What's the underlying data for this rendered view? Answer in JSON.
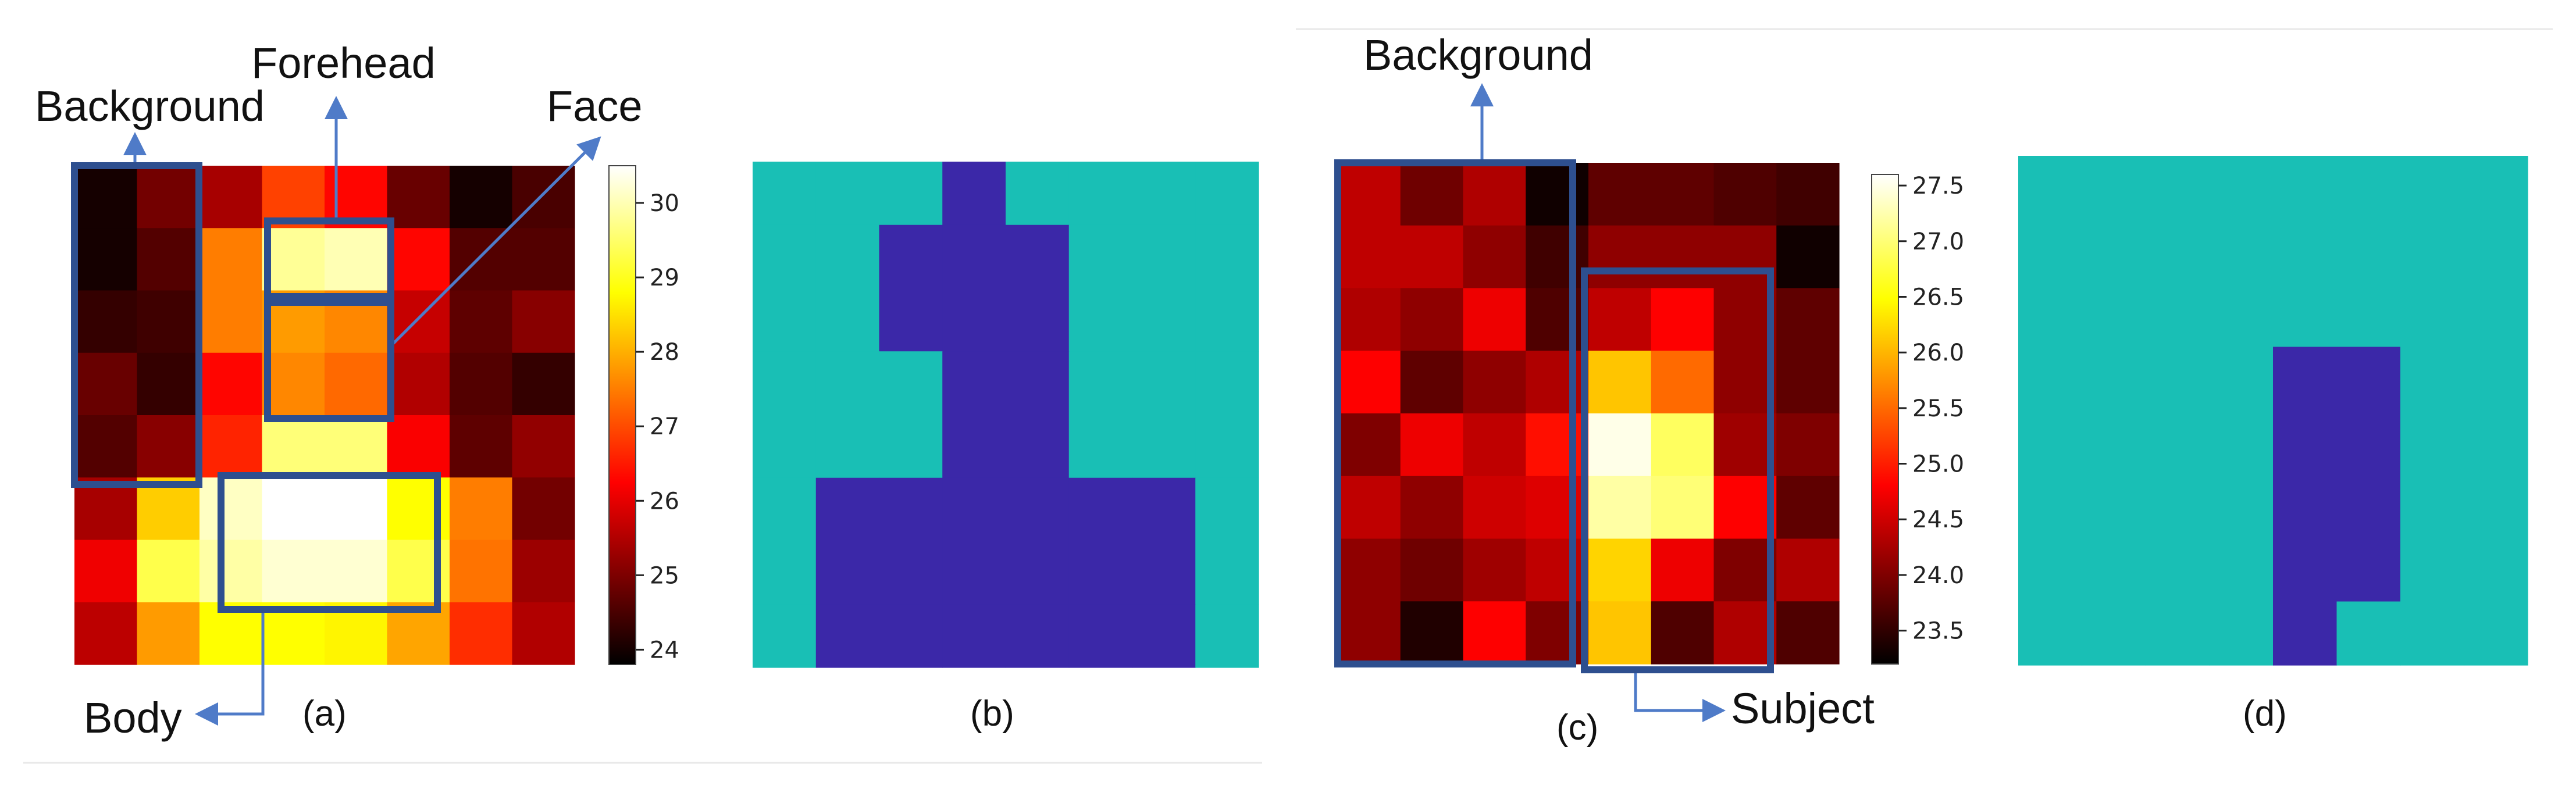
{
  "colors": {
    "annotation": "#2E4F8F",
    "arrow": "#4F7BC8",
    "mask_background": "#19BFB5",
    "mask_subject": "#3B28A8",
    "colormap": "hot"
  },
  "panel_labels": {
    "a": "(a)",
    "b": "(b)",
    "c": "(c)",
    "d": "(d)"
  },
  "annotations": {
    "a": {
      "background": "Background",
      "forehead": "Forehead",
      "face": "Face",
      "body": "Body"
    },
    "c": {
      "background": "Background",
      "subject": "Subject"
    }
  },
  "chart_data": [
    {
      "panel": "(a)",
      "type": "heatmap",
      "colormap": "hot",
      "colorbar": {
        "ticks": [
          24,
          25,
          26,
          27,
          28,
          29,
          30
        ],
        "range": [
          23.8,
          30.5
        ]
      },
      "values": [
        [
          24.0,
          24.9,
          25.4,
          26.9,
          26.3,
          24.8,
          24.0,
          24.5
        ],
        [
          24.0,
          24.6,
          27.5,
          29.8,
          30.0,
          26.3,
          24.6,
          24.6
        ],
        [
          24.3,
          24.4,
          27.5,
          27.8,
          27.6,
          25.7,
          24.7,
          25.1
        ],
        [
          24.8,
          24.3,
          26.3,
          27.6,
          27.3,
          25.5,
          24.6,
          24.3
        ],
        [
          24.6,
          25.1,
          26.6,
          29.6,
          29.6,
          26.2,
          24.7,
          25.2
        ],
        [
          25.4,
          28.3,
          30.1,
          30.5,
          30.5,
          28.8,
          27.5,
          24.9
        ],
        [
          26.1,
          29.3,
          29.9,
          30.2,
          30.2,
          29.3,
          27.4,
          25.3
        ],
        [
          25.6,
          27.8,
          28.8,
          28.8,
          28.7,
          27.9,
          26.7,
          25.5
        ]
      ]
    },
    {
      "panel": "(b)",
      "type": "heatmap",
      "legend": {
        "0": "background",
        "1": "subject"
      },
      "values": [
        [
          0,
          0,
          0,
          1,
          0,
          0,
          0,
          0
        ],
        [
          0,
          0,
          1,
          1,
          1,
          0,
          0,
          0
        ],
        [
          0,
          0,
          1,
          1,
          1,
          0,
          0,
          0
        ],
        [
          0,
          0,
          0,
          1,
          1,
          0,
          0,
          0
        ],
        [
          0,
          0,
          0,
          1,
          1,
          0,
          0,
          0
        ],
        [
          0,
          1,
          1,
          1,
          1,
          1,
          1,
          0
        ],
        [
          0,
          1,
          1,
          1,
          1,
          1,
          1,
          0
        ],
        [
          0,
          1,
          1,
          1,
          1,
          1,
          1,
          0
        ]
      ]
    },
    {
      "panel": "(c)",
      "type": "heatmap",
      "colormap": "hot",
      "colorbar": {
        "ticks": [
          23.5,
          24.0,
          24.5,
          25.0,
          25.5,
          26.0,
          26.5,
          27.0,
          27.5
        ],
        "range": [
          23.2,
          27.6
        ]
      },
      "values": [
        [
          24.4,
          23.9,
          24.3,
          23.3,
          23.8,
          23.8,
          23.7,
          23.6
        ],
        [
          24.4,
          24.4,
          24.1,
          23.6,
          24.1,
          24.1,
          24.1,
          23.3
        ],
        [
          24.3,
          24.1,
          24.7,
          23.7,
          24.4,
          24.8,
          24.1,
          23.8
        ],
        [
          24.8,
          23.8,
          24.1,
          24.3,
          26.1,
          25.5,
          24.1,
          23.8
        ],
        [
          24.0,
          24.7,
          24.4,
          24.9,
          27.5,
          26.9,
          24.2,
          24.0
        ],
        [
          24.4,
          24.1,
          24.5,
          24.6,
          27.2,
          27.0,
          24.8,
          23.8
        ],
        [
          24.1,
          23.9,
          24.2,
          24.4,
          26.2,
          24.7,
          24.0,
          24.3
        ],
        [
          24.1,
          23.4,
          24.8,
          24.0,
          26.1,
          23.7,
          24.3,
          23.7
        ]
      ]
    },
    {
      "panel": "(d)",
      "type": "heatmap",
      "legend": {
        "0": "background",
        "1": "subject"
      },
      "values": [
        [
          0,
          0,
          0,
          0,
          0,
          0,
          0,
          0
        ],
        [
          0,
          0,
          0,
          0,
          0,
          0,
          0,
          0
        ],
        [
          0,
          0,
          0,
          0,
          0,
          0,
          0,
          0
        ],
        [
          0,
          0,
          0,
          0,
          1,
          1,
          0,
          0
        ],
        [
          0,
          0,
          0,
          0,
          1,
          1,
          0,
          0
        ],
        [
          0,
          0,
          0,
          0,
          1,
          1,
          0,
          0
        ],
        [
          0,
          0,
          0,
          0,
          1,
          1,
          0,
          0
        ],
        [
          0,
          0,
          0,
          0,
          1,
          0,
          0,
          0
        ]
      ]
    }
  ]
}
